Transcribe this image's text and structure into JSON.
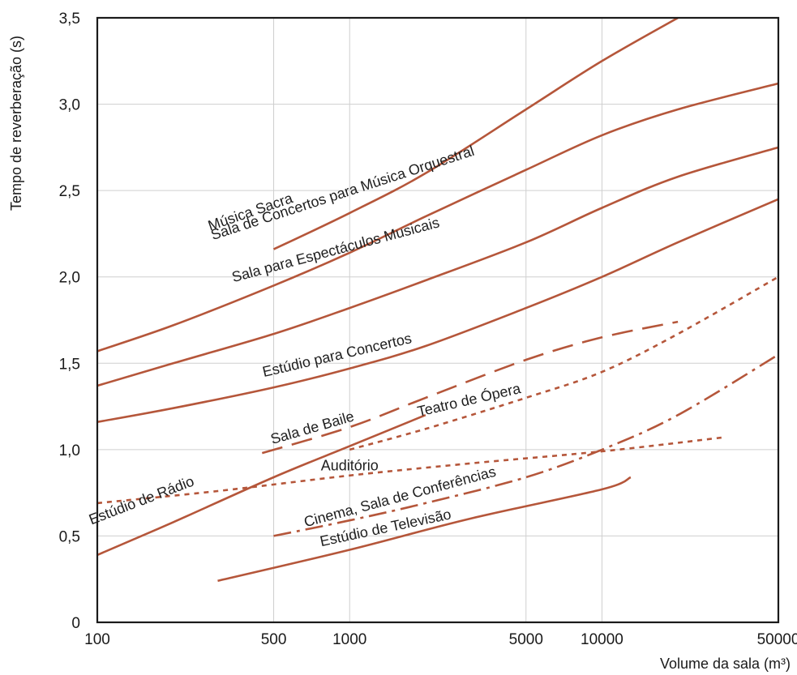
{
  "chart_data": {
    "type": "line",
    "title": "",
    "xlabel": "Volume da sala (m³)",
    "ylabel": "Tempo de reverberação (s)",
    "xscale": "log",
    "xlim": [
      100,
      50000
    ],
    "ylim": [
      0,
      3.5
    ],
    "xticks": [
      {
        "value": 100,
        "label": "100"
      },
      {
        "value": 500,
        "label": "500"
      },
      {
        "value": 1000,
        "label": "1000"
      },
      {
        "value": 5000,
        "label": "5000"
      },
      {
        "value": 10000,
        "label": "10000"
      },
      {
        "value": 50000,
        "label": "50000"
      }
    ],
    "yticks": [
      {
        "value": 0,
        "label": "0"
      },
      {
        "value": 0.5,
        "label": "0,5"
      },
      {
        "value": 1.0,
        "label": "1,0"
      },
      {
        "value": 1.5,
        "label": "1,5"
      },
      {
        "value": 2.0,
        "label": "2,0"
      },
      {
        "value": 2.5,
        "label": "2,5"
      },
      {
        "value": 3.0,
        "label": "3,0"
      },
      {
        "value": 3.5,
        "label": "3,5"
      }
    ],
    "grid": true,
    "line_color": "#b5563a",
    "series": [
      {
        "name": "Música Sacra",
        "style": "solid",
        "points": [
          [
            500,
            2.16
          ],
          [
            1000,
            2.37
          ],
          [
            2000,
            2.6
          ],
          [
            5000,
            2.97
          ],
          [
            10000,
            3.25
          ],
          [
            20000,
            3.5
          ]
        ]
      },
      {
        "name": "Sala de Concertos para Música Orquestral",
        "style": "solid",
        "points": [
          [
            100,
            1.57
          ],
          [
            200,
            1.72
          ],
          [
            500,
            1.95
          ],
          [
            1000,
            2.14
          ],
          [
            2000,
            2.35
          ],
          [
            5000,
            2.62
          ],
          [
            10000,
            2.82
          ],
          [
            20000,
            2.97
          ],
          [
            50000,
            3.12
          ]
        ]
      },
      {
        "name": "Sala para Espectáculos Musicais",
        "style": "solid",
        "points": [
          [
            100,
            1.37
          ],
          [
            200,
            1.5
          ],
          [
            500,
            1.67
          ],
          [
            1000,
            1.82
          ],
          [
            2000,
            1.98
          ],
          [
            5000,
            2.2
          ],
          [
            10000,
            2.4
          ],
          [
            20000,
            2.58
          ],
          [
            50000,
            2.75
          ]
        ]
      },
      {
        "name": "Estúdio para Concertos",
        "style": "solid",
        "points": [
          [
            100,
            1.16
          ],
          [
            200,
            1.24
          ],
          [
            500,
            1.36
          ],
          [
            1000,
            1.47
          ],
          [
            2000,
            1.6
          ],
          [
            5000,
            1.82
          ],
          [
            10000,
            2.0
          ],
          [
            20000,
            2.2
          ],
          [
            50000,
            2.45
          ]
        ]
      },
      {
        "name": "Sala de Baile",
        "style": "dash",
        "points": [
          [
            450,
            0.98
          ],
          [
            1000,
            1.13
          ],
          [
            2000,
            1.3
          ],
          [
            5000,
            1.52
          ],
          [
            10000,
            1.65
          ],
          [
            20000,
            1.74
          ]
        ]
      },
      {
        "name": "Teatro de Ópera",
        "style": "dot",
        "points": [
          [
            1000,
            1.0
          ],
          [
            2000,
            1.12
          ],
          [
            5000,
            1.3
          ],
          [
            10000,
            1.45
          ],
          [
            20000,
            1.67
          ],
          [
            50000,
            2.0
          ]
        ]
      },
      {
        "name": "Estúdio de Rádio",
        "style": "solid",
        "points": [
          [
            100,
            0.39
          ],
          [
            200,
            0.58
          ],
          [
            500,
            0.84
          ],
          [
            1000,
            1.02
          ],
          [
            2000,
            1.2
          ]
        ]
      },
      {
        "name": "Auditório",
        "style": "dot",
        "points": [
          [
            100,
            0.69
          ],
          [
            300,
            0.76
          ],
          [
            1000,
            0.85
          ],
          [
            3000,
            0.92
          ],
          [
            10000,
            0.99
          ],
          [
            30000,
            1.07
          ]
        ]
      },
      {
        "name": "Cinema, Sala de Conferências",
        "style": "dashdot",
        "points": [
          [
            500,
            0.5
          ],
          [
            1000,
            0.59
          ],
          [
            2000,
            0.69
          ],
          [
            5000,
            0.84
          ],
          [
            10000,
            1.0
          ],
          [
            20000,
            1.2
          ],
          [
            50000,
            1.55
          ]
        ]
      },
      {
        "name": "Estúdio de Televisão",
        "style": "solid",
        "points": [
          [
            300,
            0.24
          ],
          [
            1000,
            0.42
          ],
          [
            3000,
            0.6
          ],
          [
            10000,
            0.77
          ],
          [
            13000,
            0.84
          ]
        ]
      }
    ]
  }
}
